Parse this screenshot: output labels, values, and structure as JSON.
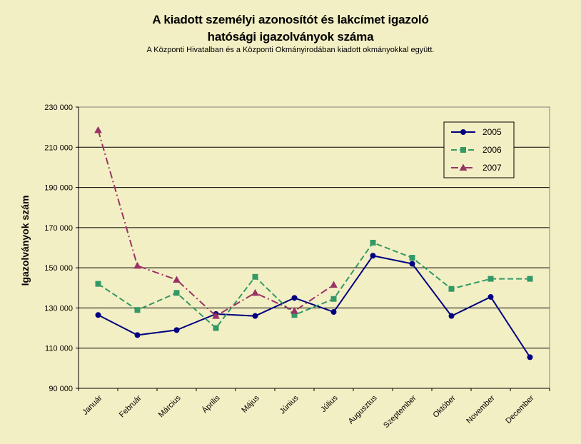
{
  "chart_data": {
    "type": "line",
    "title_line1": "A kiadott személyi azonosítót és lakcímet igazoló",
    "title_line2": "hatósági igazolványok száma",
    "subtitle": "A Központi Hivatalban és a Központi Okmányirodában kiadott okmányokkal együtt.",
    "xlabel": "",
    "ylabel": "Igazolványok szám",
    "ylim": [
      90000,
      230000
    ],
    "yticks": [
      90000,
      110000,
      130000,
      150000,
      170000,
      190000,
      210000,
      230000
    ],
    "ytick_labels": [
      "90 000",
      "110 000",
      "130 000",
      "150 000",
      "170 000",
      "190 000",
      "210 000",
      "230 000"
    ],
    "categories": [
      "Január",
      "Február",
      "Március",
      "Április",
      "Május",
      "Június",
      "Július",
      "Augusztus",
      "Szeptember",
      "Október",
      "November",
      "December"
    ],
    "grid": "horizontal",
    "legend_position": "top-right",
    "series": [
      {
        "name": "2005",
        "color": "#000080",
        "dash": "solid",
        "marker": "circle",
        "values": [
          126500,
          116500,
          119000,
          127000,
          126000,
          135000,
          128000,
          156000,
          152000,
          126000,
          135500,
          105500
        ]
      },
      {
        "name": "2006",
        "color": "#339966",
        "dash": "dash",
        "marker": "square",
        "values": [
          142000,
          129000,
          137500,
          120000,
          145500,
          126500,
          134500,
          162500,
          155000,
          139500,
          144500,
          144500
        ]
      },
      {
        "name": "2007",
        "color": "#993366",
        "dash": "dashdot",
        "marker": "triangle",
        "values": [
          218500,
          151000,
          144000,
          126000,
          137500,
          128500,
          141500,
          null,
          null,
          null,
          null,
          null
        ]
      }
    ]
  }
}
